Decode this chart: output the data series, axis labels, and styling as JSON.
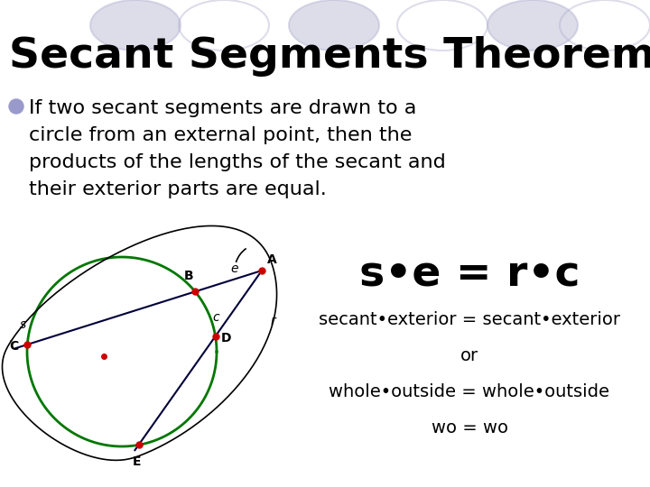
{
  "title": "Secant Segments Theorem",
  "title_fontsize": 34,
  "title_fontweight": "bold",
  "title_color": "#000000",
  "bg_color": "#ffffff",
  "bullet_color": "#9999cc",
  "bullet_fontsize": 16,
  "formula_text": "s•e = r•c",
  "formula_fontsize": 34,
  "formula_fontweight": "bold",
  "sub1_text": "secant•exterior = secant•exterior",
  "sub1_fontsize": 14,
  "or_text": "or",
  "or_fontsize": 14,
  "sub2_text": "whole•outside = whole•outside",
  "sub2_fontsize": 14,
  "sub3_text": "wo = wo",
  "sub3_fontsize": 14,
  "decoration_circles_color": "#aaaacc",
  "decoration_circles_alpha": 0.4,
  "circle_color": "#007700",
  "line_color_dark": "#00003a",
  "point_color": "#cc0000",
  "label_fontsize": 9,
  "bullet_lines": [
    "If two secant segments are drawn to a",
    "circle from an external point, then the",
    "products of the lengths of the secant and",
    "their exterior parts are equal."
  ]
}
